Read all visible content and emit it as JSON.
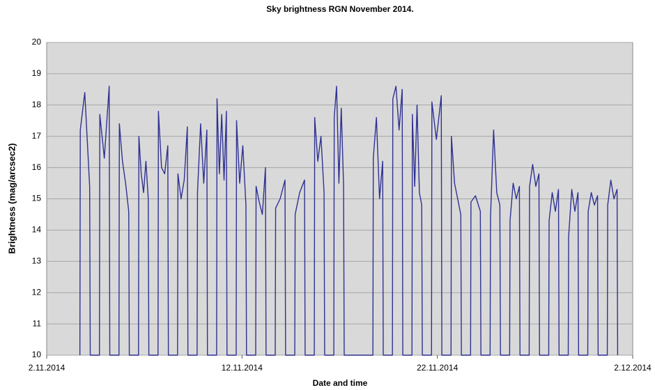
{
  "chart_data": {
    "type": "line",
    "title": "Sky brightness RGN November 2014.",
    "x_label": "Date and time",
    "y_label": "Brightness (mag/arcsec2)",
    "color": "#2e3192",
    "grid": true,
    "xlim": [
      2,
      32
    ],
    "xticks": [
      {
        "value": 2,
        "label": "2.11.2014"
      },
      {
        "value": 12,
        "label": "12.11.2014"
      },
      {
        "value": 22,
        "label": "22.11.2014"
      },
      {
        "value": 32,
        "label": "2.12.2014"
      }
    ],
    "ylim": [
      10,
      20
    ],
    "yticks": [
      10,
      11,
      12,
      13,
      14,
      15,
      16,
      17,
      18,
      19,
      20
    ],
    "x": [
      3.7,
      3.72,
      3.95,
      4.2,
      4.23,
      4.7,
      4.72,
      4.95,
      5.2,
      5.23,
      5.7,
      5.72,
      5.88,
      6.04,
      6.2,
      6.23,
      6.7,
      6.72,
      6.84,
      6.96,
      7.08,
      7.2,
      7.23,
      7.7,
      7.72,
      7.88,
      8.04,
      8.2,
      8.23,
      8.7,
      8.72,
      8.88,
      9.04,
      9.2,
      9.23,
      9.7,
      9.72,
      9.88,
      10.04,
      10.2,
      10.23,
      10.7,
      10.72,
      10.84,
      10.96,
      11.08,
      11.2,
      11.23,
      11.7,
      11.72,
      11.88,
      12.04,
      12.2,
      12.23,
      12.7,
      12.72,
      12.88,
      13.04,
      13.2,
      13.23,
      13.7,
      13.72,
      13.95,
      14.2,
      14.23,
      14.7,
      14.72,
      14.95,
      15.2,
      15.23,
      15.7,
      15.72,
      15.88,
      16.04,
      16.2,
      16.23,
      16.7,
      16.72,
      16.84,
      16.96,
      17.08,
      17.2,
      17.23,
      18.7,
      18.72,
      18.88,
      19.04,
      19.2,
      19.23,
      19.7,
      19.72,
      19.88,
      20.04,
      20.2,
      20.23,
      20.7,
      20.72,
      20.84,
      20.96,
      21.08,
      21.2,
      21.23,
      21.7,
      21.72,
      21.95,
      22.2,
      22.23,
      22.7,
      22.72,
      22.88,
      23.04,
      23.2,
      23.23,
      23.7,
      23.72,
      23.95,
      24.2,
      24.23,
      24.7,
      24.72,
      24.88,
      25.04,
      25.2,
      25.23,
      25.7,
      25.72,
      25.88,
      26.04,
      26.2,
      26.23,
      26.7,
      26.72,
      26.88,
      27.04,
      27.2,
      27.23,
      27.7,
      27.72,
      27.88,
      28.04,
      28.2,
      28.23,
      28.7,
      28.72,
      28.88,
      29.04,
      29.2,
      29.23,
      29.7,
      29.72,
      29.88,
      30.04,
      30.2,
      30.23,
      30.7,
      30.72,
      30.88,
      31.04,
      31.2,
      31.23
    ],
    "values": [
      10,
      17.2,
      18.4,
      15.4,
      10,
      10,
      17.7,
      16.3,
      18.6,
      10,
      10,
      17.4,
      16.2,
      15.5,
      14.6,
      10,
      10,
      17.0,
      15.8,
      15.2,
      16.2,
      15.0,
      10,
      10,
      17.8,
      16.0,
      15.8,
      16.7,
      10,
      10,
      15.8,
      15.0,
      15.6,
      17.3,
      10,
      10,
      15.2,
      17.4,
      15.5,
      17.2,
      10,
      10,
      18.2,
      15.8,
      17.7,
      15.6,
      17.8,
      10,
      10,
      17.5,
      15.5,
      16.7,
      14.8,
      10,
      10,
      15.4,
      14.9,
      14.5,
      16.0,
      10,
      10,
      14.7,
      15.0,
      15.6,
      10,
      10,
      14.5,
      15.2,
      15.6,
      10,
      10,
      17.6,
      16.2,
      17.0,
      15.2,
      10,
      10,
      17.6,
      18.6,
      15.5,
      17.9,
      15.4,
      10,
      10,
      16.3,
      17.6,
      15.0,
      16.2,
      10,
      10,
      18.2,
      18.6,
      17.2,
      18.5,
      10,
      10,
      17.7,
      15.4,
      18.0,
      15.2,
      14.8,
      10,
      10,
      18.1,
      16.9,
      18.3,
      10,
      10,
      17.0,
      15.5,
      15.0,
      14.5,
      10,
      10,
      14.9,
      15.1,
      14.6,
      10,
      10,
      14.4,
      17.2,
      15.2,
      14.8,
      10,
      10,
      14.3,
      15.5,
      15.0,
      15.4,
      10,
      10,
      15.4,
      16.1,
      15.4,
      15.8,
      10,
      10,
      14.3,
      15.2,
      14.6,
      15.3,
      10,
      10,
      13.8,
      15.3,
      14.6,
      15.2,
      10,
      10,
      14.6,
      15.2,
      14.8,
      15.1,
      10,
      10,
      14.8,
      15.6,
      15.0,
      15.3,
      10
    ]
  }
}
